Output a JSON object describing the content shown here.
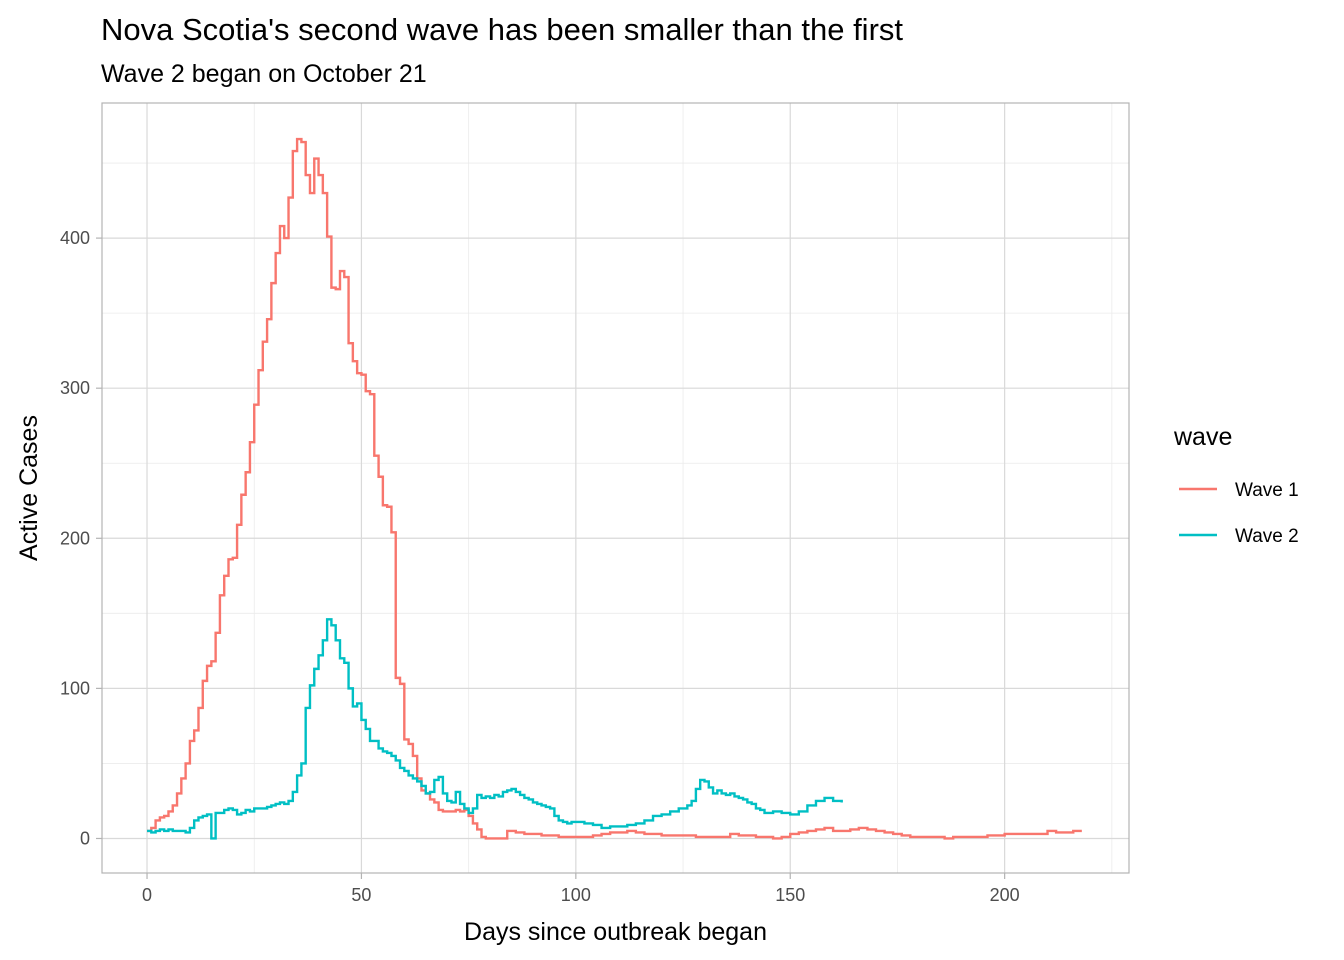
{
  "chart_data": {
    "type": "line",
    "step": true,
    "title": "Nova Scotia's second wave has been smaller than the first",
    "subtitle": "Wave 2 began on October 21",
    "xlabel": "Days since outbreak began",
    "ylabel": "Active Cases",
    "xlim": [
      -10.5,
      229
    ],
    "ylim": [
      -23,
      490
    ],
    "x_ticks": [
      0,
      50,
      100,
      150,
      200
    ],
    "y_ticks": [
      0,
      100,
      200,
      300,
      400
    ],
    "x_tick_labels": [
      "0",
      "50",
      "100",
      "150",
      "200"
    ],
    "y_tick_labels": [
      "0",
      "100",
      "200",
      "300",
      "400"
    ],
    "grid": true,
    "legend": {
      "title": "wave",
      "position": "right",
      "entries": [
        "Wave 1",
        "Wave 2"
      ]
    },
    "series": [
      {
        "name": "Wave 1",
        "color": "#F8766D",
        "x": [
          0,
          1,
          2,
          3,
          4,
          5,
          6,
          7,
          8,
          9,
          10,
          11,
          12,
          13,
          14,
          15,
          16,
          17,
          18,
          19,
          20,
          21,
          22,
          23,
          24,
          25,
          26,
          27,
          28,
          29,
          30,
          31,
          32,
          33,
          34,
          35,
          36,
          37,
          38,
          39,
          40,
          41,
          42,
          43,
          44,
          45,
          46,
          47,
          48,
          49,
          50,
          51,
          52,
          53,
          54,
          55,
          56,
          57,
          58,
          59,
          60,
          61,
          62,
          63,
          64,
          65,
          66,
          67,
          68,
          69,
          70,
          71,
          72,
          73,
          74,
          75,
          76,
          77,
          78,
          79,
          80,
          82,
          84,
          86,
          88,
          90,
          92,
          94,
          96,
          98,
          100,
          102,
          104,
          106,
          108,
          110,
          112,
          114,
          116,
          118,
          120,
          122,
          124,
          126,
          128,
          130,
          132,
          134,
          136,
          138,
          140,
          142,
          144,
          146,
          148,
          150,
          152,
          154,
          156,
          158,
          160,
          162,
          164,
          166,
          168,
          170,
          172,
          174,
          176,
          178,
          180,
          182,
          184,
          186,
          188,
          190,
          192,
          194,
          196,
          198,
          200,
          202,
          204,
          206,
          208,
          210,
          212,
          214,
          216,
          218
        ],
        "values": [
          5,
          7,
          12,
          14,
          15,
          18,
          22,
          30,
          40,
          50,
          65,
          72,
          87,
          105,
          115,
          118,
          137,
          162,
          175,
          186,
          187,
          209,
          229,
          244,
          264,
          289,
          312,
          331,
          346,
          370,
          390,
          408,
          400,
          427,
          458,
          466,
          464,
          442,
          430,
          453,
          442,
          430,
          401,
          367,
          366,
          378,
          374,
          330,
          318,
          310,
          309,
          298,
          296,
          255,
          241,
          222,
          221,
          204,
          107,
          103,
          66,
          63,
          55,
          40,
          32,
          30,
          26,
          24,
          19,
          18,
          18,
          18,
          19,
          18,
          19,
          15,
          10,
          6,
          1,
          0,
          0,
          0,
          5,
          4,
          3,
          3,
          2,
          2,
          1,
          1,
          1,
          1,
          2,
          3,
          4,
          4,
          5,
          4,
          3,
          3,
          2,
          2,
          2,
          2,
          1,
          1,
          1,
          1,
          3,
          2,
          2,
          1,
          1,
          0,
          1,
          3,
          4,
          5,
          6,
          7,
          5,
          5,
          6,
          7,
          6,
          5,
          4,
          3,
          2,
          1,
          1,
          1,
          1,
          0,
          1,
          1,
          1,
          1,
          2,
          2,
          3,
          3,
          3,
          3,
          3,
          5,
          4,
          4,
          5,
          5
        ]
      },
      {
        "name": "Wave 2",
        "color": "#00BFC4",
        "x": [
          0,
          1,
          2,
          3,
          4,
          5,
          6,
          7,
          8,
          9,
          10,
          11,
          12,
          13,
          14,
          15,
          16,
          17,
          18,
          19,
          20,
          21,
          22,
          23,
          24,
          25,
          26,
          27,
          28,
          29,
          30,
          31,
          32,
          33,
          34,
          35,
          36,
          37,
          38,
          39,
          40,
          41,
          42,
          43,
          44,
          45,
          46,
          47,
          48,
          49,
          50,
          51,
          52,
          53,
          54,
          55,
          56,
          57,
          58,
          59,
          60,
          61,
          62,
          63,
          64,
          65,
          66,
          67,
          68,
          69,
          70,
          71,
          72,
          73,
          74,
          75,
          76,
          77,
          78,
          79,
          80,
          81,
          82,
          83,
          84,
          85,
          86,
          87,
          88,
          89,
          90,
          91,
          92,
          93,
          94,
          95,
          96,
          97,
          98,
          99,
          100,
          102,
          104,
          106,
          108,
          110,
          112,
          114,
          116,
          118,
          120,
          122,
          124,
          126,
          127,
          128,
          129,
          130,
          131,
          132,
          133,
          134,
          135,
          136,
          137,
          138,
          139,
          140,
          141,
          142,
          143,
          144,
          146,
          148,
          150,
          152,
          154,
          156,
          158,
          160,
          162
        ],
        "values": [
          5,
          4,
          5,
          6,
          5,
          6,
          5,
          5,
          5,
          4,
          7,
          12,
          14,
          15,
          16,
          0,
          17,
          17,
          19,
          20,
          19,
          16,
          17,
          19,
          18,
          20,
          20,
          20,
          21,
          22,
          23,
          24,
          23,
          25,
          31,
          42,
          50,
          87,
          102,
          113,
          122,
          132,
          146,
          142,
          132,
          120,
          117,
          100,
          88,
          90,
          79,
          73,
          65,
          65,
          60,
          58,
          57,
          55,
          52,
          47,
          45,
          42,
          40,
          38,
          35,
          30,
          31,
          39,
          41,
          30,
          25,
          24,
          31,
          23,
          20,
          17,
          20,
          29,
          27,
          28,
          27,
          29,
          28,
          31,
          32,
          33,
          31,
          29,
          27,
          26,
          24,
          23,
          22,
          21,
          20,
          15,
          12,
          11,
          10,
          11,
          11,
          10,
          9,
          7,
          8,
          8,
          9,
          10,
          12,
          15,
          16,
          18,
          20,
          22,
          25,
          33,
          39,
          38,
          34,
          30,
          32,
          30,
          29,
          30,
          28,
          27,
          26,
          24,
          23,
          20,
          19,
          17,
          18,
          17,
          16,
          18,
          22,
          25,
          27,
          25,
          24
        ]
      }
    ]
  }
}
